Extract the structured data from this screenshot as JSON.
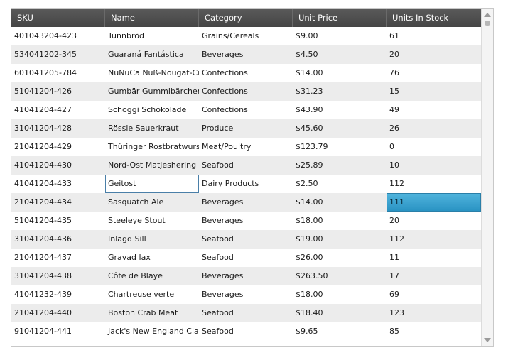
{
  "grid": {
    "columns": [
      "SKU",
      "Name",
      "Category",
      "Unit Price",
      "Units In Stock"
    ],
    "rows": [
      [
        "401043204-423",
        "Tunnbröd",
        "Grains/Cereals",
        "$9.00",
        "61"
      ],
      [
        "534041202-345",
        "Guaraná Fantástica",
        "Beverages",
        "$4.50",
        "20"
      ],
      [
        "601041205-784",
        "NuNuCa Nuß-Nougat-Creme",
        "Confections",
        "$14.00",
        "76"
      ],
      [
        "51041204-426",
        "Gumbär Gummibärchen",
        "Confections",
        "$31.23",
        "15"
      ],
      [
        "41041204-427",
        "Schoggi Schokolade",
        "Confections",
        "$43.90",
        "49"
      ],
      [
        "31041204-428",
        "Rössle Sauerkraut",
        "Produce",
        "$45.60",
        "26"
      ],
      [
        "21041204-429",
        "Thüringer Rostbratwurst",
        "Meat/Poultry",
        "$123.79",
        "0"
      ],
      [
        "41041204-430",
        "Nord-Ost Matjeshering",
        "Seafood",
        "$25.89",
        "10"
      ],
      [
        "41041204-433",
        "Geitost",
        "Dairy Products",
        "$2.50",
        "112"
      ],
      [
        "21041204-434",
        "Sasquatch Ale",
        "Beverages",
        "$14.00",
        "111"
      ],
      [
        "51041204-435",
        "Steeleye Stout",
        "Beverages",
        "$18.00",
        "20"
      ],
      [
        "31041204-436",
        "Inlagd Sill",
        "Seafood",
        "$19.00",
        "112"
      ],
      [
        "21041204-437",
        "Gravad lax",
        "Seafood",
        "$26.00",
        "11"
      ],
      [
        "31041204-438",
        "Côte de Blaye",
        "Beverages",
        "$263.50",
        "17"
      ],
      [
        "41041232-439",
        "Chartreuse verte",
        "Beverages",
        "$18.00",
        "69"
      ],
      [
        "21041204-440",
        "Boston Crab Meat",
        "Seafood",
        "$18.40",
        "123"
      ],
      [
        "91041204-441",
        "Jack's New England Clam Chowder",
        "Seafood",
        "$9.65",
        "85"
      ]
    ],
    "focused_cell": {
      "row": 8,
      "col": 1
    },
    "selected_cell": {
      "row": 9,
      "col": 4
    },
    "colors": {
      "header_bg": "#4d4d4d",
      "alt_row_bg": "#ececec",
      "selection": "#3aa3d0"
    },
    "icons": {
      "scroll_up": "arrow-up-icon",
      "scroll_down": "arrow-down-icon"
    }
  }
}
